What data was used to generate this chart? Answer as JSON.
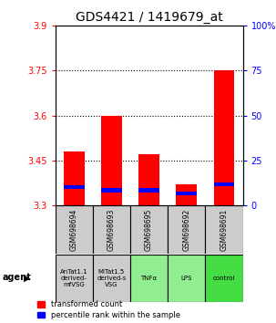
{
  "title": "GDS4421 / 1419679_at",
  "bar_labels": [
    "GSM698694",
    "GSM698693",
    "GSM698695",
    "GSM698692",
    "GSM698691"
  ],
  "agent_labels": [
    "AnTat1.1\nderived-\nmfVSG",
    "MiTat1.5\nderived-s\nVSG",
    "TNFα",
    "LPS",
    "control"
  ],
  "agent_colors": [
    "#cccccc",
    "#cccccc",
    "#90ee90",
    "#90ee90",
    "#44dd44"
  ],
  "red_values": [
    3.48,
    3.6,
    3.47,
    3.37,
    3.75
  ],
  "blue_values": [
    3.36,
    3.35,
    3.35,
    3.34,
    3.37
  ],
  "ymin": 3.3,
  "ymax": 3.9,
  "y_ticks_left": [
    3.3,
    3.45,
    3.6,
    3.75,
    3.9
  ],
  "y_ticks_right": [
    0,
    25,
    50,
    75,
    100
  ],
  "bar_width": 0.55,
  "legend_red": "transformed count",
  "legend_blue": "percentile rank within the sample",
  "title_fontsize": 10,
  "tick_fontsize": 7,
  "gray_bg": "#cccccc",
  "dotted_lines": [
    3.45,
    3.6,
    3.75
  ]
}
